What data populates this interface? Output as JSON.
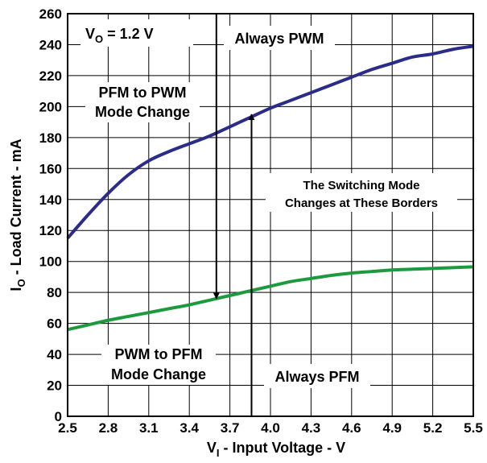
{
  "chart_data": {
    "type": "line",
    "xlabel": {
      "main": "V",
      "sub": "I",
      "rest": " - Input Voltage - V"
    },
    "ylabel": {
      "main": "I",
      "sub": "O",
      "rest": " - Load Current - mA"
    },
    "xlim": [
      2.5,
      5.5
    ],
    "ylim": [
      0,
      260
    ],
    "x_ticks": [
      "2.5",
      "2.8",
      "3.1",
      "3.4",
      "3.7",
      "4.0",
      "4.3",
      "4.6",
      "4.9",
      "5.2",
      "5.5"
    ],
    "y_ticks": [
      "0",
      "20",
      "40",
      "60",
      "80",
      "100",
      "120",
      "140",
      "160",
      "180",
      "200",
      "220",
      "240",
      "260"
    ],
    "grid": true,
    "series": [
      {
        "color": "#2b2b8a",
        "x": [
          2.5,
          2.65,
          2.8,
          2.95,
          3.1,
          3.25,
          3.4,
          3.55,
          3.7,
          3.85,
          4.0,
          4.15,
          4.3,
          4.45,
          4.6,
          4.75,
          4.9,
          5.05,
          5.2,
          5.35,
          5.5
        ],
        "y": [
          115,
          130,
          144,
          156,
          165,
          171,
          176,
          181,
          187,
          193,
          199,
          204,
          209,
          214,
          219,
          224,
          228,
          232,
          234,
          237,
          239
        ]
      },
      {
        "color": "#1e9a3e",
        "x": [
          2.5,
          2.65,
          2.8,
          2.95,
          3.1,
          3.25,
          3.4,
          3.55,
          3.7,
          3.85,
          4.0,
          4.15,
          4.3,
          4.45,
          4.6,
          4.75,
          4.9,
          5.05,
          5.2,
          5.35,
          5.5
        ],
        "y": [
          56,
          59,
          62,
          64.5,
          67,
          69.5,
          72,
          75,
          78,
          81,
          84,
          87,
          89,
          91,
          92.5,
          93.5,
          94.5,
          95,
          95.5,
          96,
          96.5
        ]
      }
    ],
    "annotations": {
      "vo": {
        "main": "V",
        "sub": "O",
        "rest": " = 1.2 V"
      },
      "always_pwm": "Always PWM",
      "pfm_to_pwm_line1": "PFM to PWM",
      "pfm_to_pwm_line2": "Mode Change",
      "switching_line1": "The Switching Mode",
      "switching_line2": "Changes at These Borders",
      "pwm_to_pfm_line1": "PWM to PFM",
      "pwm_to_pfm_line2": "Mode Change",
      "always_pfm": "Always PFM"
    },
    "arrows": [
      {
        "x": 3.6,
        "y_from": 260,
        "y_to": 76
      },
      {
        "x": 3.86,
        "y_from": 0,
        "y_to": 195
      }
    ]
  }
}
